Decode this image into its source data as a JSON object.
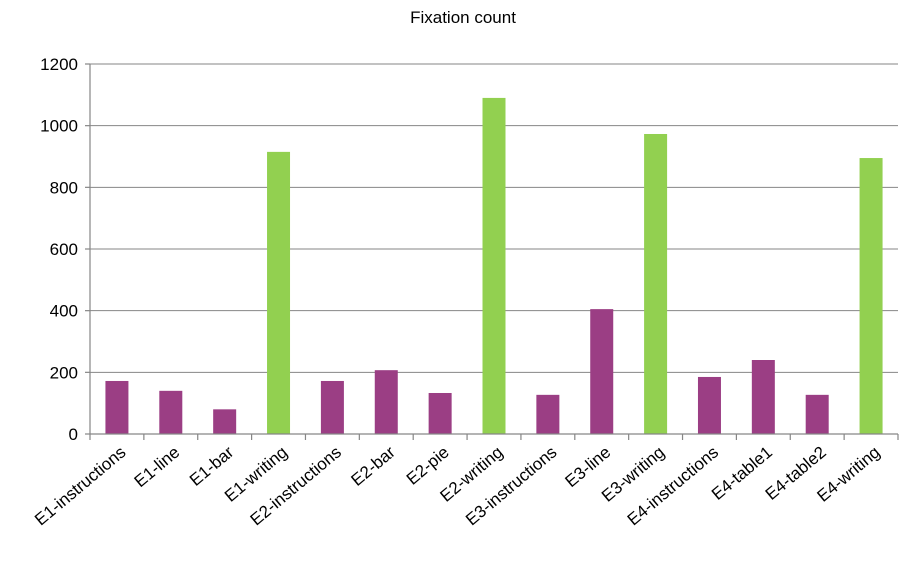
{
  "chart_data": {
    "type": "bar",
    "title": "Fixation count",
    "xlabel": "",
    "ylabel": "",
    "ylim": [
      0,
      1200
    ],
    "yticks": [
      0,
      200,
      400,
      600,
      800,
      1000,
      1200
    ],
    "grid": true,
    "legend": "none",
    "categories": [
      "E1-instructions",
      "E1-line",
      "E1-bar",
      "E1-writing",
      "E2-instructions",
      "E2-bar",
      "E2-pie",
      "E2-writing",
      "E3-instructions",
      "E3-line",
      "E3-writing",
      "E4-instructions",
      "E4-table1",
      "E4-table2",
      "E4-writing"
    ],
    "values": [
      172,
      140,
      80,
      915,
      172,
      207,
      133,
      1090,
      127,
      405,
      973,
      185,
      240,
      127,
      895
    ],
    "colors": [
      "#9B3E84",
      "#9B3E84",
      "#9B3E84",
      "#92D050",
      "#9B3E84",
      "#9B3E84",
      "#9B3E84",
      "#92D050",
      "#9B3E84",
      "#9B3E84",
      "#92D050",
      "#9B3E84",
      "#9B3E84",
      "#9B3E84",
      "#92D050"
    ]
  }
}
